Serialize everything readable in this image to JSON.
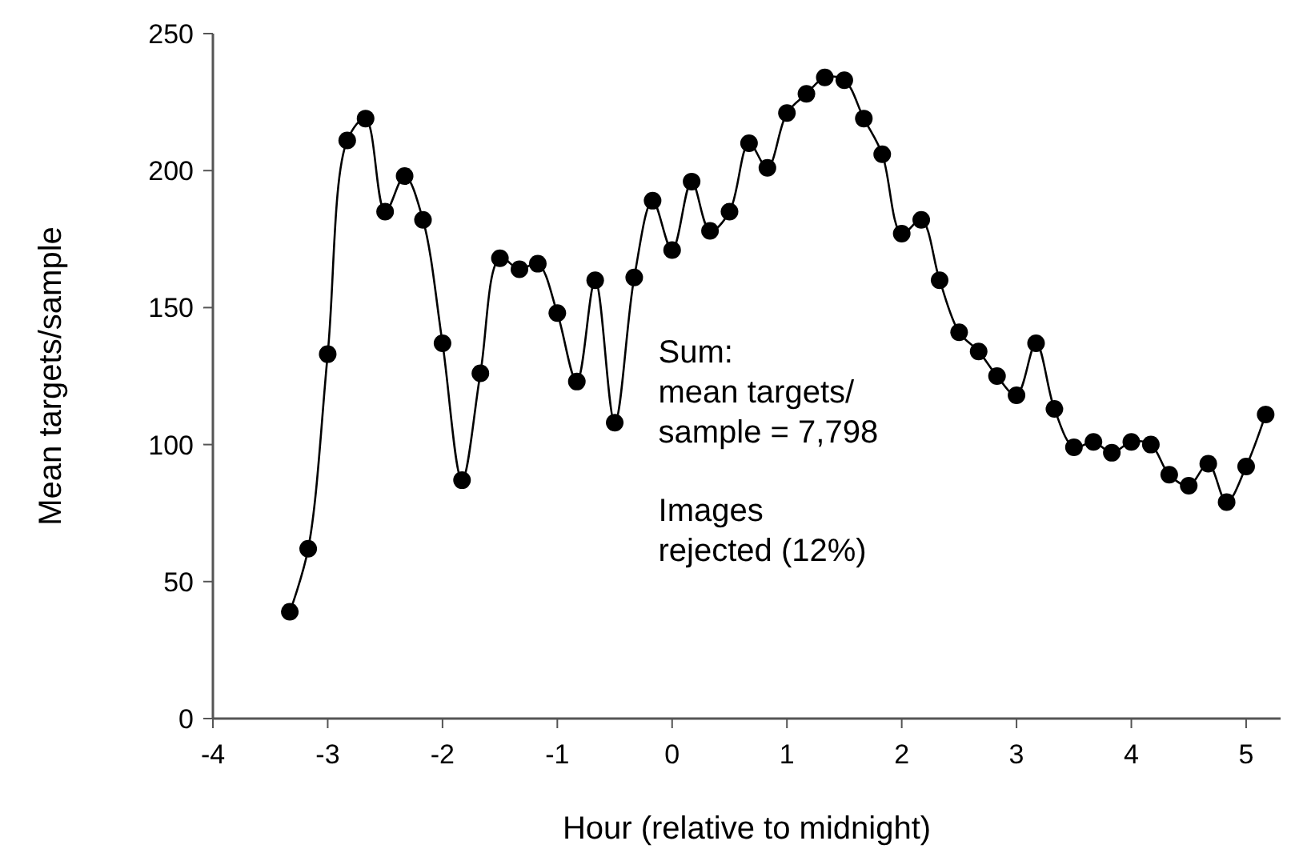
{
  "chart_data": {
    "type": "line",
    "xlabel": "Hour (relative to midnight)",
    "ylabel": "Mean targets/sample",
    "xlim": [
      -4,
      5.3
    ],
    "xticks": [
      -4,
      -3,
      -2,
      -1,
      0,
      1,
      2,
      3,
      4,
      5
    ],
    "ylim": [
      0,
      250
    ],
    "yticks": [
      0,
      50,
      100,
      150,
      200,
      250
    ],
    "grid": false,
    "marker": "circle",
    "line_style": "solid",
    "series": [
      {
        "color": "#000000",
        "x": [
          -3.33,
          -3.17,
          -3,
          -2.83,
          -2.67,
          -2.5,
          -2.33,
          -2.17,
          -2,
          -1.83,
          -1.67,
          -1.5,
          -1.33,
          -1.17,
          -1,
          -0.83,
          -0.67,
          -0.5,
          -0.33,
          -0.17,
          0,
          0.17,
          0.33,
          0.5,
          0.67,
          0.83,
          1,
          1.17,
          1.33,
          1.5,
          1.67,
          1.83,
          2,
          2.17,
          2.33,
          2.5,
          2.67,
          2.83,
          3,
          3.17,
          3.33,
          3.5,
          3.67,
          3.83,
          4,
          4.17,
          4.33,
          4.5,
          4.67,
          4.83,
          5,
          5.17
        ],
        "values": [
          39,
          62,
          133,
          211,
          219,
          185,
          198,
          182,
          137,
          87,
          126,
          168,
          164,
          166,
          148,
          123,
          160,
          108,
          161,
          189,
          171,
          196,
          178,
          185,
          210,
          201,
          221,
          228,
          234,
          233,
          219,
          206,
          177,
          182,
          160,
          141,
          134,
          125,
          118,
          137,
          113,
          99,
          101,
          97,
          101,
          100,
          89,
          85,
          93,
          79,
          92,
          111
        ]
      }
    ],
    "annotations": [
      "Sum:\nmean targets/\nsample = 7,798",
      "Images\nrejected (12%)"
    ]
  }
}
